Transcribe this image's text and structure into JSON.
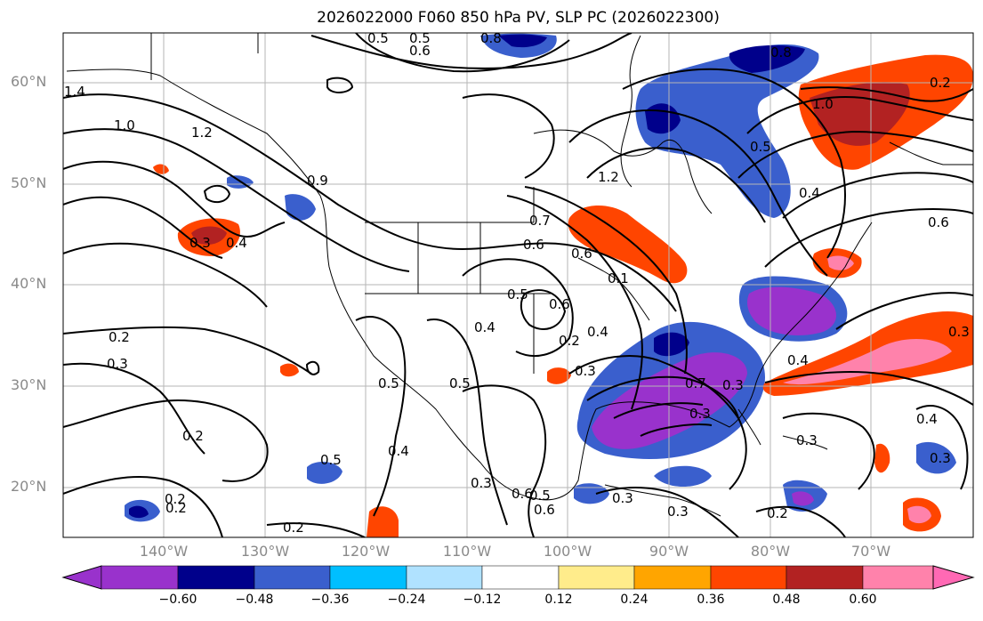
{
  "title": "2026022000 F060 850 hPa PV, SLP PC (2026022300)",
  "lat_labels": [
    "60°N",
    "50°N",
    "40°N",
    "30°N",
    "20°N"
  ],
  "lon_labels": [
    "140°W",
    "130°W",
    "120°W",
    "110°W",
    "100°W",
    "90°W",
    "80°W",
    "70°W"
  ],
  "colorbar": {
    "ticks": [
      "−0.60",
      "−0.48",
      "−0.36",
      "−0.24",
      "−0.12",
      "0.12",
      "0.24",
      "0.36",
      "0.48",
      "0.60"
    ],
    "colors": [
      "#9932cc",
      "#00008b",
      "#3a5fcd",
      "#00bfff",
      "#b0e2ff",
      "#ffffff",
      "#ffec8b",
      "#ffa500",
      "#ff4500",
      "#b22222",
      "#ff82ab",
      "#ff69b4"
    ]
  },
  "contour_labels": [
    "1.4",
    "1.0",
    "1.2",
    "0.9",
    "0.4",
    "0.3",
    "0.2",
    "0.3",
    "0.2",
    "0.2",
    "0.2",
    "0.5",
    "0.5",
    "0.4",
    "0.5",
    "0.3",
    "0.6",
    "0.5",
    "0.6",
    "0.4",
    "0.5",
    "0.4",
    "0.2",
    "0.6",
    "0.3",
    "0.7",
    "0.3",
    "0.3",
    "0.4",
    "0.7",
    "0.3",
    "0.2",
    "0.6",
    "0.5",
    "0.6",
    "0.8",
    "1.2",
    "1.0",
    "0.5",
    "0.4",
    "0.8",
    "0.6",
    "0.3",
    "0.4",
    "0.3",
    "0.3",
    "0.2",
    "0.2",
    "0.5",
    "0.3",
    "0.6",
    "0.1"
  ]
}
